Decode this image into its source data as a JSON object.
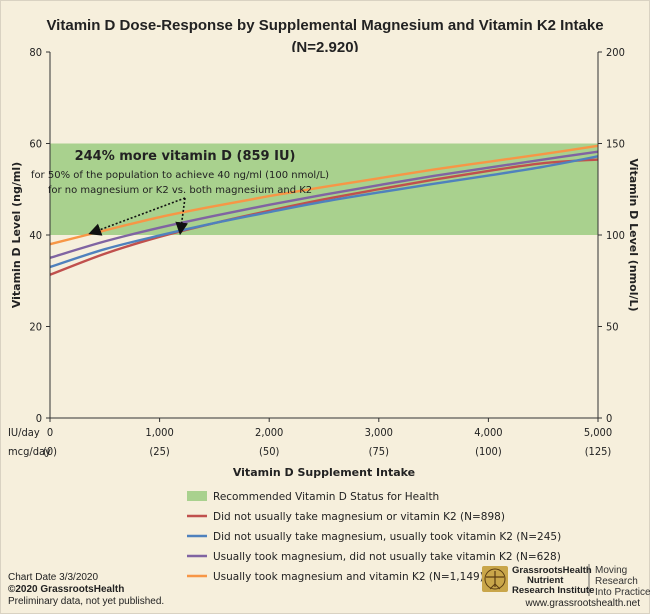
{
  "chart_data": {
    "type": "line",
    "title": "Vitamin D Dose-Response by Supplemental Magnesium and Vitamin K2 Intake",
    "subtitle": "(N=2,920)",
    "xlabel": "Vitamin D Supplement Intake",
    "ylabel_left": "Vitamin D Level (ng/ml)",
    "ylabel_right": "Vitamin D Level (nmol/L)",
    "xlim": [
      0,
      5000
    ],
    "ylim_left": [
      0,
      80
    ],
    "ylim_right": [
      0,
      200
    ],
    "x_row1_label": "IU/day",
    "x_row2_label": "mcg/day",
    "x_ticks": [
      {
        "value": 0,
        "iu": "0",
        "mcg": "(0)"
      },
      {
        "value": 1000,
        "iu": "1,000",
        "mcg": "(25)"
      },
      {
        "value": 2000,
        "iu": "2,000",
        "mcg": "(50)"
      },
      {
        "value": 3000,
        "iu": "3,000",
        "mcg": "(75)"
      },
      {
        "value": 4000,
        "iu": "4,000",
        "mcg": "(100)"
      },
      {
        "value": 5000,
        "iu": "5,000",
        "mcg": "(125)"
      }
    ],
    "y_left_ticks": [
      0,
      20,
      40,
      60,
      80
    ],
    "y_right_ticks": [
      0,
      50,
      100,
      150,
      200
    ],
    "band": {
      "y_from": 40,
      "y_to": 60,
      "label": "Recommended Vitamin D Status for Health",
      "color": "#a9d18e"
    },
    "x": [
      0,
      500,
      1000,
      1500,
      2000,
      2500,
      3000,
      3500,
      4000,
      4500,
      5000
    ],
    "series": [
      {
        "name": "Did not usually take magnesium or vitamin K2 (N=898)",
        "color": "#c0504d",
        "values": [
          31.3,
          35.9,
          39.6,
          42.6,
          45.3,
          47.8,
          50.0,
          52.1,
          54.0,
          55.7,
          56.5
        ]
      },
      {
        "name": "Did not usually take magnesium, usually took vitamin K2 (N=245)",
        "color": "#4f81bd",
        "values": [
          33.0,
          36.9,
          39.9,
          42.6,
          45.0,
          47.3,
          49.3,
          51.2,
          53.0,
          54.9,
          57.2
        ]
      },
      {
        "name": "Usually took magnesium, did not usually take vitamin K2 (N=628)",
        "color": "#8064a2",
        "values": [
          35.0,
          38.6,
          41.6,
          44.2,
          46.6,
          48.8,
          50.9,
          52.9,
          54.7,
          56.5,
          58.2
        ]
      },
      {
        "name": "Usually took magnesium and vitamin K2 (N=1,149)",
        "color": "#f79646",
        "values": [
          38.0,
          41.0,
          43.9,
          46.3,
          48.5,
          50.5,
          52.4,
          54.3,
          56.0,
          57.7,
          59.5
        ]
      }
    ],
    "annotation": {
      "headline": "244% more vitamin D (859 IU)",
      "line1": "for 50% of the population to achieve 40 ng/ml (100 nmol/L)",
      "line2": "for no magnesium or K2 vs. both magnesium and K2",
      "arrow_left_x": 340,
      "arrow_right_x": 1199,
      "arrow_y": 40
    }
  },
  "footer": {
    "chart_date": "Chart Date 3/3/2020",
    "copyright": "©2020 GrassrootsHealth",
    "note": "Preliminary data, not yet published.",
    "logo_line1": "GrassrootsHealth",
    "logo_line2": "Nutrient",
    "logo_line3": "Research Institute",
    "tagline1": "Moving",
    "tagline2": "Research",
    "tagline3": "Into Practice",
    "website": "www.grassrootshealth.net"
  }
}
